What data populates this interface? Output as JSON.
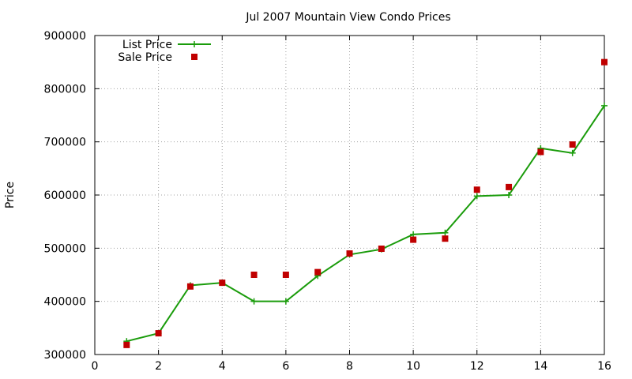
{
  "chart_data": {
    "type": "line",
    "title": "Jul 2007 Mountain View Condo Prices",
    "xlabel": "",
    "ylabel": "Price",
    "xlim": [
      0,
      16
    ],
    "ylim": [
      300000,
      900000
    ],
    "xticks": [
      0,
      2,
      4,
      6,
      8,
      10,
      12,
      14,
      16
    ],
    "yticks": [
      300000,
      400000,
      500000,
      600000,
      700000,
      800000,
      900000
    ],
    "grid": true,
    "legend_position": "top-left",
    "series": [
      {
        "name": "List Price",
        "kind": "line-points",
        "marker": "plus",
        "color": "#1a9c0b",
        "x": [
          1,
          2,
          3,
          4,
          5,
          6,
          7,
          8,
          9,
          10,
          11,
          12,
          13,
          14,
          15,
          16
        ],
        "y": [
          325000,
          340000,
          430000,
          435000,
          400000,
          400000,
          448000,
          488000,
          498000,
          526000,
          529000,
          598000,
          600000,
          688000,
          679000,
          768000
        ]
      },
      {
        "name": "Sale Price",
        "kind": "points",
        "marker": "square",
        "color": "#c00000",
        "x": [
          1,
          2,
          3,
          4,
          5,
          6,
          7,
          8,
          9,
          10,
          11,
          12,
          13,
          14,
          15,
          16
        ],
        "y": [
          318000,
          340000,
          428000,
          435000,
          450000,
          450000,
          455000,
          490000,
          499000,
          516000,
          518000,
          610000,
          615000,
          681000,
          695000,
          850000
        ]
      }
    ]
  }
}
